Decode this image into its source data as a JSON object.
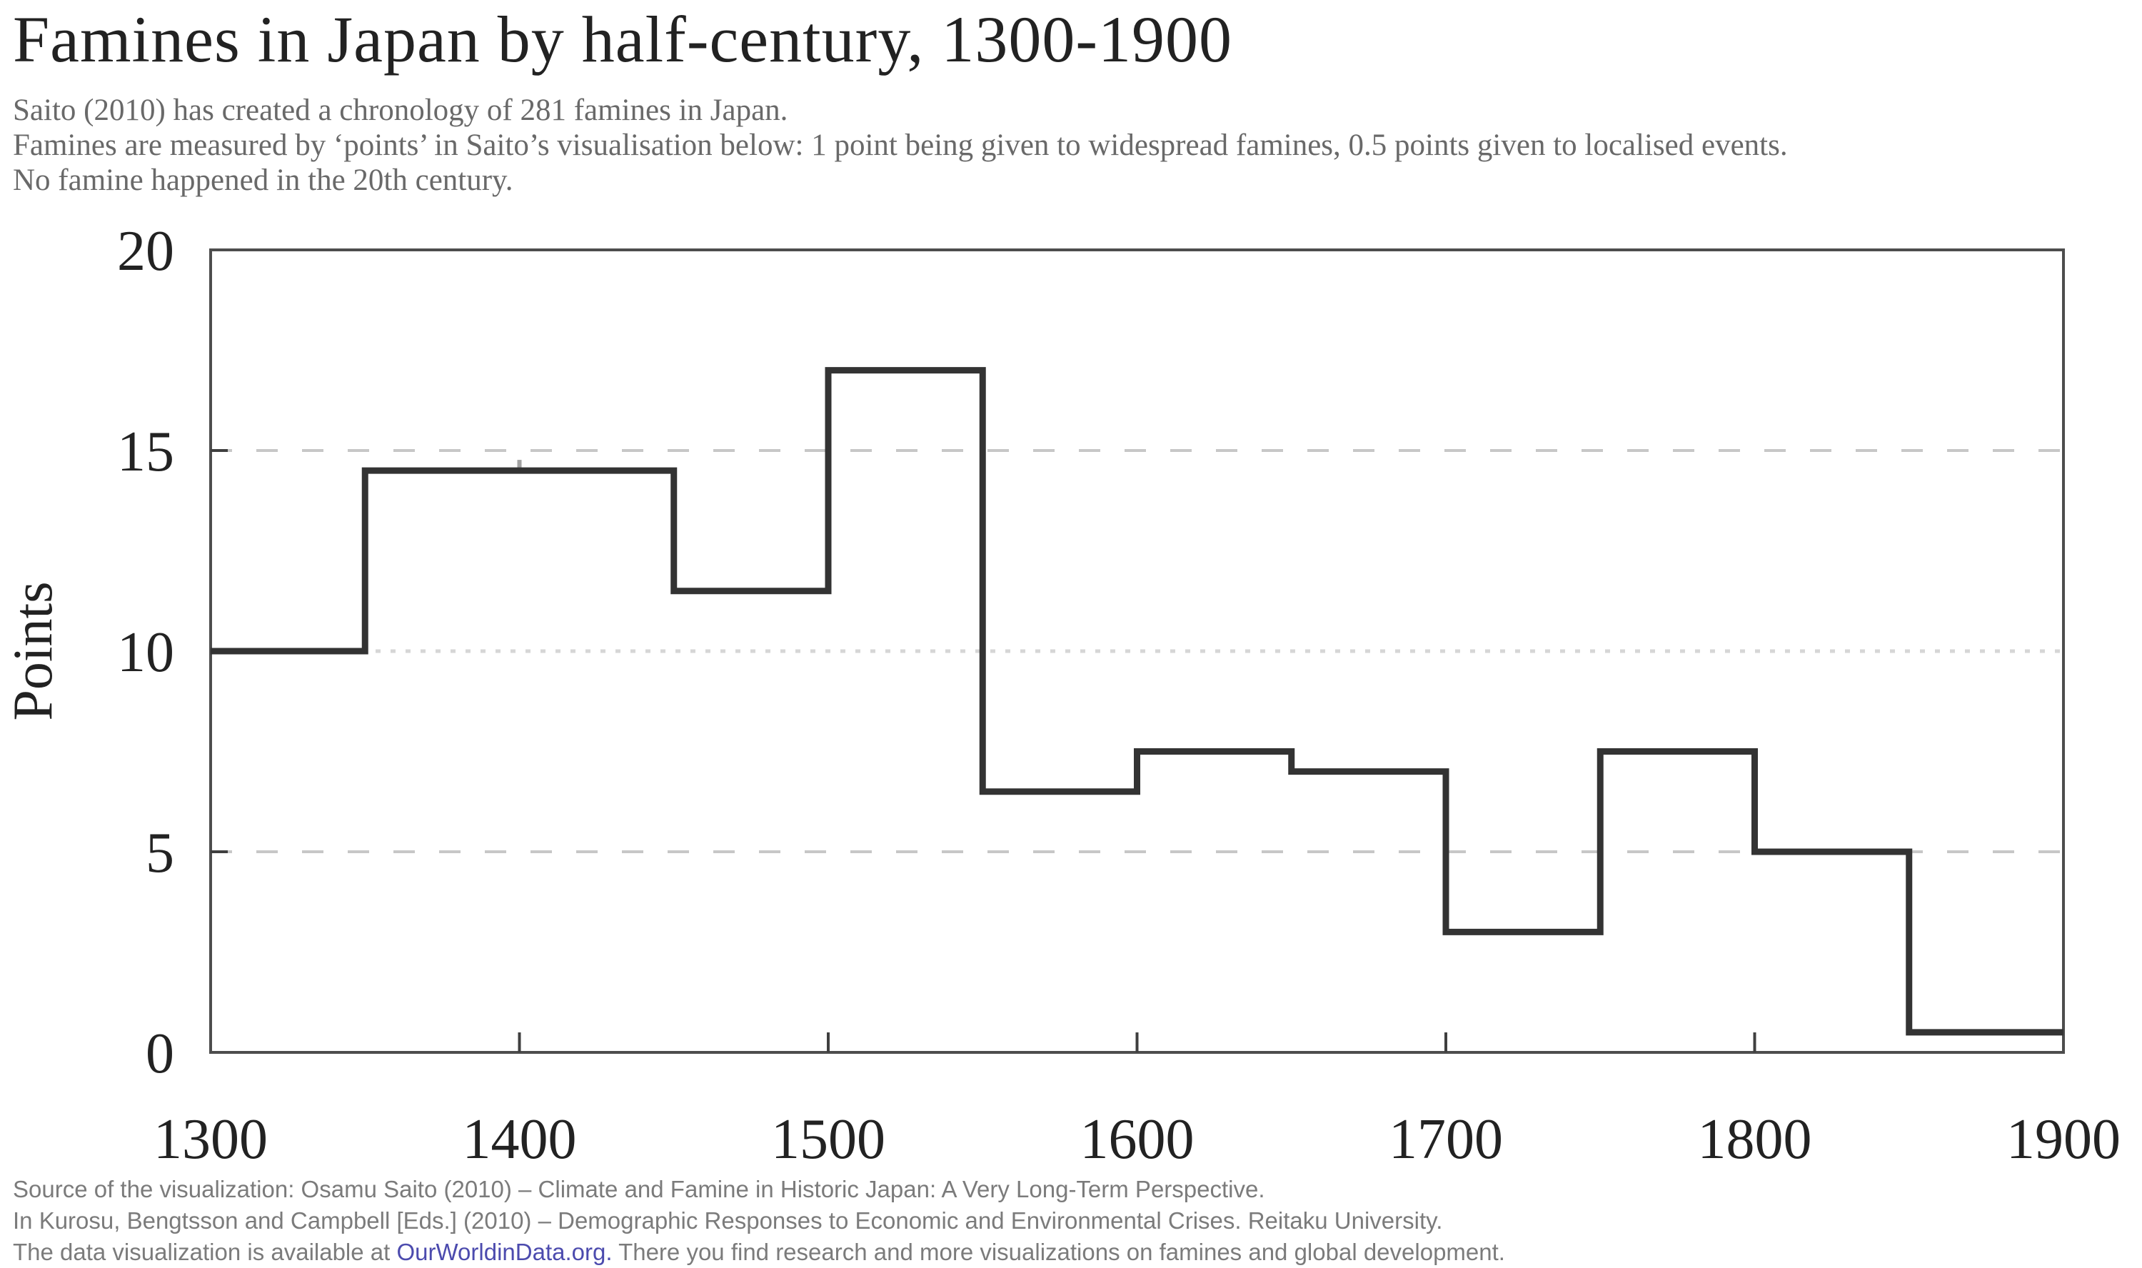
{
  "title": "Famines in Japan by half-century, 1300-1900",
  "subtitle_lines": [
    "Saito (2010) has created a chronology of 281 famines in Japan.",
    "Famines are measured by ‘points’ in Saito’s visualisation below: 1 point being given to widespread famines, 0.5 points given to localised events.",
    "No famine happened in the 20th century."
  ],
  "footer": {
    "line1": "Source of the visualization: Osamu Saito (2010) – Climate and Famine in Historic Japan: A Very Long-Term Perspective.",
    "line2": "In Kurosu, Bengtsson and Campbell [Eds.] (2010) – Demographic Responses to Economic and Environmental Crises. Reitaku University.",
    "line3_prefix": "The data visualization is available at ",
    "link_text": "OurWorldinData.org.",
    "line3_suffix": " There you find research and more visualizations on famines and global development."
  },
  "colors": {
    "background": "#ffffff",
    "line": "#333333",
    "frame": "#4d4d4d",
    "axis_tick": "#3f3f3f",
    "grid_dashed": "#c7c7c7",
    "grid_dotted": "#d6d6d6",
    "text_dark": "#222222",
    "text_subtitle": "#696969",
    "text_footer": "#7b7b7b",
    "link": "#4c4bae"
  },
  "chart_data": {
    "type": "step",
    "title": "Famines in Japan by half-century, 1300-1900",
    "xlabel": "",
    "ylabel": "Points",
    "xlim": [
      1300,
      1900
    ],
    "ylim": [
      0,
      20
    ],
    "x_ticks": [
      1300,
      1400,
      1500,
      1600,
      1700,
      1800,
      1900
    ],
    "x_inner_ticks": [
      1400,
      1500,
      1600,
      1700,
      1800
    ],
    "y_ticks": [
      0,
      5,
      10,
      15,
      20
    ],
    "y_inner_ticks": [
      5,
      10,
      15
    ],
    "gridlines_dashed": [
      5,
      15
    ],
    "gridlines_dotted": [
      10
    ],
    "grid": true,
    "boundary_marks": [
      1400
    ],
    "bin_edges": [
      1300,
      1350,
      1400,
      1450,
      1500,
      1550,
      1600,
      1650,
      1700,
      1750,
      1800,
      1850,
      1900
    ],
    "categories": [
      "1300–1350",
      "1350–1400",
      "1400–1450",
      "1450–1500",
      "1500–1550",
      "1550–1600",
      "1600–1650",
      "1650–1700",
      "1700–1750",
      "1750–1800",
      "1800–1850",
      "1850–1900"
    ],
    "values": [
      10,
      14.5,
      14.5,
      11.5,
      17,
      6.5,
      7.5,
      7,
      3,
      7.5,
      5,
      0.5
    ]
  }
}
